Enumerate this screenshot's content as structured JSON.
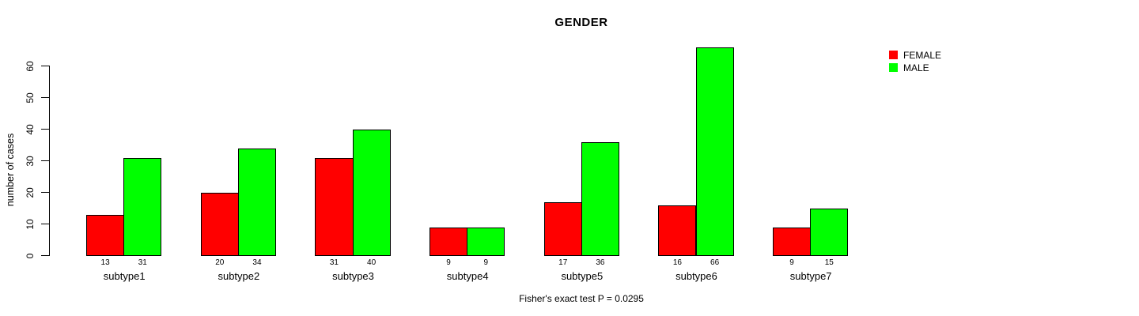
{
  "figure": {
    "title": "GENDER",
    "caption": "Fisher's exact test P = 0.0295"
  },
  "chart_data": {
    "type": "bar",
    "title": "GENDER",
    "categories": [
      "subtype1",
      "subtype2",
      "subtype3",
      "subtype4",
      "subtype5",
      "subtype6",
      "subtype7"
    ],
    "series": [
      {
        "name": "FEMALE",
        "color": "#ff0000",
        "values": [
          13,
          20,
          31,
          9,
          17,
          16,
          9
        ]
      },
      {
        "name": "MALE",
        "color": "#00ff00",
        "values": [
          31,
          34,
          40,
          9,
          36,
          66,
          15
        ]
      }
    ],
    "xlabel": "",
    "ylabel": "number of cases",
    "yticks": [
      0,
      10,
      20,
      30,
      40,
      50,
      60
    ],
    "ylim": [
      0,
      60
    ],
    "grid": false,
    "legend_position": "top-right-outside",
    "bar_value_labels": true,
    "annotation": "Fisher's exact test P = 0.0295",
    "bar_border_color": "#000000",
    "axis_color": "#000000"
  }
}
